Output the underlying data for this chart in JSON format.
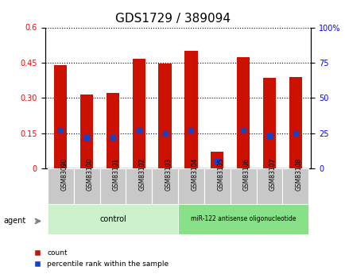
{
  "title": "GDS1729 / 389094",
  "samples": [
    "GSM83090",
    "GSM83100",
    "GSM83101",
    "GSM83102",
    "GSM83103",
    "GSM83104",
    "GSM83105",
    "GSM83106",
    "GSM83107",
    "GSM83108"
  ],
  "count_values": [
    0.44,
    0.315,
    0.32,
    0.465,
    0.445,
    0.5,
    0.07,
    0.475,
    0.385,
    0.39
  ],
  "percentile_values": [
    27,
    22,
    22,
    27,
    25,
    27,
    5,
    27,
    23,
    25
  ],
  "ylim_left": [
    0,
    0.6
  ],
  "ylim_right": [
    0,
    100
  ],
  "yticks_left": [
    0,
    0.15,
    0.3,
    0.45,
    0.6
  ],
  "yticks_right": [
    0,
    25,
    50,
    75,
    100
  ],
  "ytick_labels_left": [
    "0",
    "0.15",
    "0.30",
    "0.45",
    "0.6"
  ],
  "ytick_labels_right": [
    "0",
    "25",
    "50",
    "75",
    "100%"
  ],
  "bar_color": "#cc1100",
  "marker_color": "#1144cc",
  "n_control": 5,
  "n_treatment": 5,
  "control_label": "control",
  "treatment_label": "miR-122 antisense oligonucleotide",
  "agent_label": "agent",
  "legend_count": "count",
  "legend_percentile": "percentile rank within the sample",
  "bar_width": 0.5,
  "bg_plot": "#ffffff",
  "bg_xlabel": "#c8c8c8",
  "bg_control": "#ccf0cc",
  "bg_treatment": "#88e088",
  "title_fontsize": 11,
  "tick_fontsize": 7,
  "legend_fontsize": 6.5
}
